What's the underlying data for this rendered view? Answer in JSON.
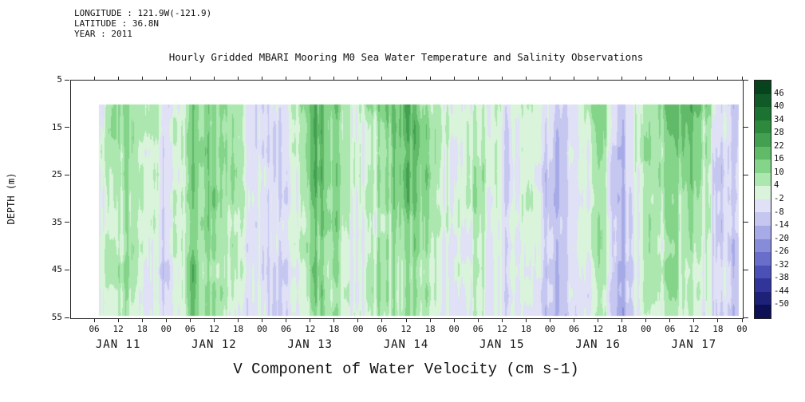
{
  "header": {
    "line1": "LONGITUDE : 121.9W(-121.9)",
    "line2": "LATITUDE : 36.8N",
    "line3": "YEAR : 2011"
  },
  "chart_data": {
    "type": "heatmap",
    "title": "Hourly Gridded MBARI Mooring M0 Sea Water Temperature and Salinity Observations",
    "bottom_label": "V Component of Water Velocity (cm s-1)",
    "ylabel": "DEPTH (m)",
    "value_unit": "cm s-1",
    "y_ticks": [
      5,
      15,
      25,
      35,
      45,
      55
    ],
    "y_range": [
      5,
      55
    ],
    "x_tick_labels": [
      "06",
      "12",
      "18",
      "00",
      "06",
      "12",
      "18",
      "00",
      "06",
      "12",
      "18",
      "00",
      "06",
      "12",
      "18",
      "00",
      "06",
      "12",
      "18",
      "00",
      "06",
      "12",
      "18",
      "00",
      "06",
      "12",
      "18",
      "00"
    ],
    "day_labels": [
      "JAN 11",
      "JAN 12",
      "JAN 13",
      "JAN 14",
      "JAN 15",
      "JAN 16",
      "JAN 17"
    ],
    "colorbar": {
      "ticks": [
        46,
        40,
        34,
        28,
        22,
        16,
        10,
        4,
        -2,
        -8,
        -14,
        -20,
        -26,
        -32,
        -38,
        -44,
        -50
      ],
      "colors": [
        "#07431c",
        "#0f5a26",
        "#1b7231",
        "#2c893e",
        "#42a050",
        "#61ba68",
        "#84d48a",
        "#abe7ae",
        "#d9f4da",
        "#e0e0f6",
        "#c5c7f0",
        "#a6aae6",
        "#878cd9",
        "#686ec9",
        "#4a50b5",
        "#31359a",
        "#1e2178",
        "#0d1054"
      ]
    },
    "data_time_range_hours": [
      7,
      167
    ],
    "data_depth_range_m": [
      10,
      54.5
    ],
    "grid": {
      "note": "estimated v-velocity (cm/s) on coarse grid; depths (m) x 6-hourly times from JAN 11 06:00",
      "depths": [
        10,
        17,
        24,
        31,
        38,
        45,
        52
      ],
      "time_start_hour": 6,
      "time_step_hours": 6,
      "values": [
        [
          -6,
          10,
          6,
          -8,
          12,
          12,
          6,
          -6,
          -6,
          18,
          10,
          2,
          12,
          20,
          8,
          -2,
          4,
          -2,
          6,
          -8,
          -2,
          14,
          -10,
          4,
          16,
          20,
          -4,
          -12
        ],
        [
          -4,
          12,
          4,
          -6,
          14,
          16,
          4,
          -8,
          -8,
          20,
          12,
          0,
          8,
          20,
          12,
          -4,
          8,
          -6,
          4,
          -10,
          -6,
          12,
          -12,
          6,
          14,
          18,
          -6,
          -10
        ],
        [
          -4,
          8,
          2,
          -6,
          12,
          16,
          6,
          -6,
          -10,
          18,
          14,
          -2,
          6,
          18,
          10,
          -6,
          10,
          -8,
          2,
          -10,
          -4,
          8,
          -14,
          8,
          12,
          14,
          -8,
          -10
        ],
        [
          -2,
          6,
          2,
          -8,
          10,
          14,
          2,
          -4,
          -8,
          16,
          12,
          -2,
          4,
          16,
          10,
          -4,
          8,
          -6,
          6,
          -12,
          -4,
          6,
          -12,
          6,
          10,
          10,
          -6,
          -8
        ],
        [
          -4,
          6,
          0,
          -6,
          12,
          12,
          4,
          -6,
          -6,
          14,
          10,
          -4,
          6,
          14,
          8,
          -6,
          6,
          -8,
          4,
          -10,
          -6,
          8,
          -14,
          4,
          8,
          8,
          -8,
          -10
        ],
        [
          -2,
          8,
          2,
          -10,
          14,
          10,
          2,
          -8,
          -10,
          16,
          8,
          -2,
          8,
          12,
          6,
          -4,
          4,
          -6,
          2,
          -12,
          -4,
          6,
          -12,
          6,
          6,
          6,
          -6,
          -12
        ],
        [
          -4,
          6,
          0,
          -8,
          10,
          8,
          0,
          -6,
          -12,
          12,
          6,
          -4,
          6,
          10,
          4,
          -6,
          2,
          -8,
          0,
          -14,
          -6,
          4,
          -16,
          4,
          4,
          4,
          -8,
          -14
        ]
      ]
    }
  }
}
